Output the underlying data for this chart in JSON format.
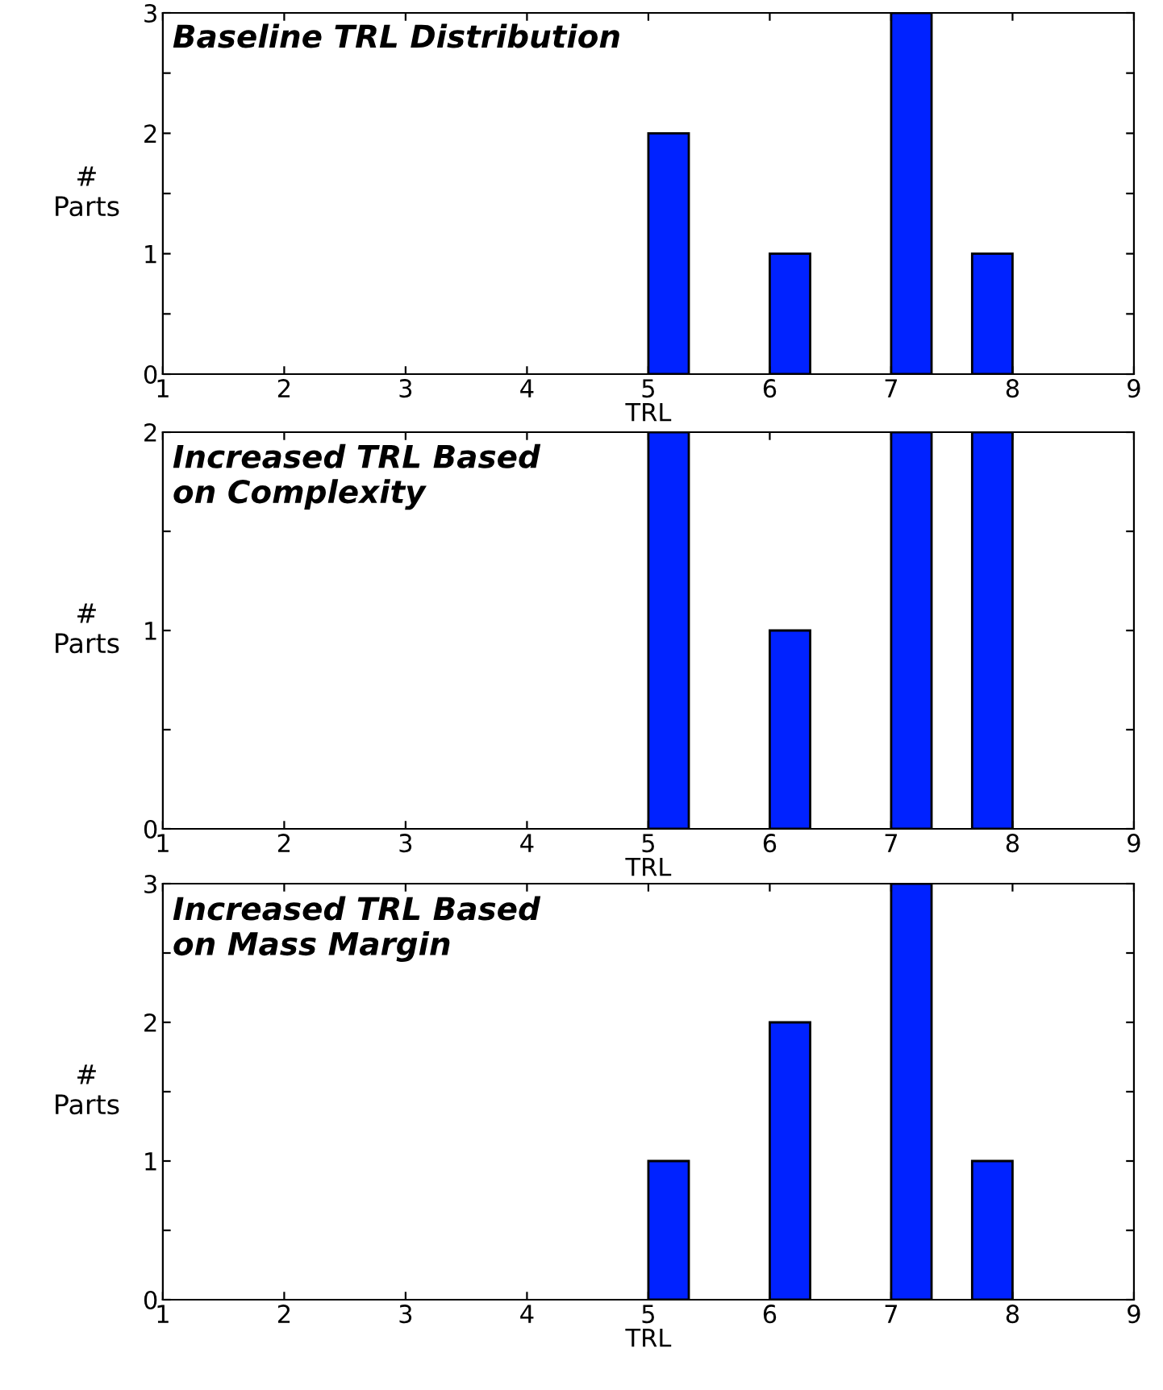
{
  "chart_data": [
    {
      "type": "histogram",
      "title": "Baseline TRL Distribution",
      "xlabel": "TRL",
      "ylabel": "#\nParts",
      "color": "#0022ff",
      "bins": [
        5,
        5.333,
        5.667,
        6,
        6.333,
        6.667,
        7,
        7.333,
        7.667,
        8
      ],
      "values": [
        2,
        0,
        0,
        1,
        0,
        0,
        3,
        0,
        1
      ],
      "xlim": [
        1,
        9
      ],
      "xticks": [
        1,
        2,
        3,
        4,
        5,
        6,
        7,
        8,
        9
      ],
      "ylim": [
        0,
        3
      ],
      "yticks": [
        0,
        {
          "value": 0.5,
          "label": null
        },
        1,
        {
          "value": 1.5,
          "label": null
        },
        2,
        {
          "value": 2.5,
          "label": null
        },
        3
      ],
      "grid": false
    },
    {
      "type": "histogram",
      "title": "Increased TRL Based\non Complexity",
      "xlabel": "TRL",
      "ylabel": "#\nParts",
      "color": "#0022ff",
      "bins": [
        5,
        5.333,
        5.667,
        6,
        6.333,
        6.667,
        7,
        7.333,
        7.667,
        8
      ],
      "values": [
        2,
        0,
        0,
        1,
        0,
        0,
        2,
        0,
        2
      ],
      "xlim": [
        1,
        9
      ],
      "xticks": [
        1,
        2,
        3,
        4,
        5,
        6,
        7,
        8,
        9
      ],
      "ylim": [
        0,
        2
      ],
      "yticks": [
        0,
        {
          "value": 0.5,
          "label": null
        },
        1,
        {
          "value": 1.5,
          "label": null
        },
        2
      ],
      "grid": false
    },
    {
      "type": "histogram",
      "title": "Increased TRL Based\non Mass Margin",
      "xlabel": "TRL",
      "ylabel": "#\nParts",
      "color": "#0022ff",
      "bins": [
        5,
        5.333,
        5.667,
        6,
        6.333,
        6.667,
        7,
        7.333,
        7.667,
        8
      ],
      "values": [
        1,
        0,
        0,
        2,
        0,
        0,
        3,
        0,
        1
      ],
      "xlim": [
        1,
        9
      ],
      "xticks": [
        1,
        2,
        3,
        4,
        5,
        6,
        7,
        8,
        9
      ],
      "ylim": [
        0,
        3
      ],
      "yticks": [
        0,
        {
          "value": 0.5,
          "label": null
        },
        1,
        {
          "value": 1.5,
          "label": null
        },
        2,
        {
          "value": 2.5,
          "label": null
        },
        3
      ],
      "grid": false
    }
  ]
}
